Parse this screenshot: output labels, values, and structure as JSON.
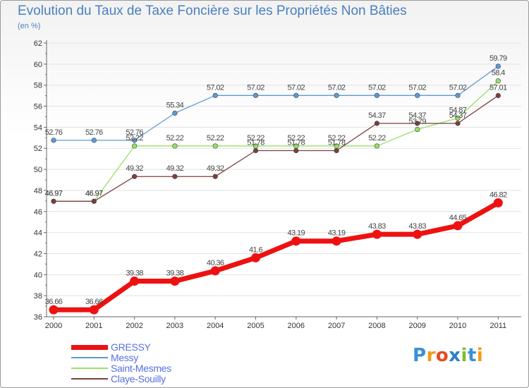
{
  "header": {
    "title": "Evolution du Taux de Taxe Foncière sur les Propriétés Non Bâties",
    "unit": "(en %)"
  },
  "logo": {
    "text": "Proxiti",
    "letters": [
      "P",
      "r",
      "o",
      "x",
      "i",
      "t",
      "i"
    ],
    "colors": [
      "#3a8fd6",
      "#f39a1e",
      "#e84a1f",
      "#2a7fc8",
      "#7bbf2a",
      "#3a8fd6",
      "#f39a1e"
    ]
  },
  "chart_data": {
    "type": "line",
    "title": "Evolution du Taux de Taxe Foncière sur les Propriétés Non Bâties",
    "ylabel": "(en %)",
    "xlabel": "",
    "x": [
      "2000",
      "2001",
      "2002",
      "2003",
      "2004",
      "2005",
      "2006",
      "2007",
      "2008",
      "2009",
      "2010",
      "2011"
    ],
    "ylim": [
      36,
      62
    ],
    "yticks": [
      "36",
      "38",
      "40",
      "42",
      "44",
      "46",
      "48",
      "50",
      "52",
      "54",
      "56",
      "58",
      "60",
      "62"
    ],
    "grid": "horizontal",
    "series": [
      {
        "name": "GRESSY",
        "color": "#ee1111",
        "values": [
          36.66,
          36.66,
          39.38,
          39.38,
          40.36,
          41.6,
          43.19,
          43.19,
          43.83,
          43.83,
          44.65,
          46.82
        ],
        "labels": [
          "36.66",
          "36.66",
          "39.38",
          "39.38",
          "40.36",
          "41.6",
          "43.19",
          "43.19",
          "43.83",
          "43.83",
          "44.65",
          "46.82"
        ]
      },
      {
        "name": "Messy",
        "color": "#5b9bd5",
        "values": [
          52.76,
          52.76,
          52.76,
          55.34,
          57.02,
          57.02,
          57.02,
          57.02,
          57.02,
          57.02,
          57.02,
          59.79
        ],
        "labels": [
          "52.76",
          "52.76",
          "52.76",
          "55.34",
          "57.02",
          "57.02",
          "57.02",
          "57.02",
          "57.02",
          "57.02",
          "57.02",
          "59.79"
        ]
      },
      {
        "name": "Saint-Mesmes",
        "color": "#99e066",
        "values": [
          46.97,
          46.97,
          52.22,
          52.22,
          52.22,
          52.22,
          52.22,
          52.22,
          52.22,
          53.79,
          54.87,
          58.4
        ],
        "labels": [
          "46.97",
          "46.97",
          "52.22",
          "52.22",
          "52.22",
          "52.22",
          "52.22",
          "52.22",
          "52.22",
          "53.79",
          "54.87",
          "58.4"
        ]
      },
      {
        "name": "Claye-Souilly",
        "color": "#7a3f3f",
        "values": [
          46.97,
          46.97,
          49.32,
          49.32,
          49.32,
          51.78,
          51.78,
          51.78,
          54.37,
          54.37,
          54.37,
          57.01
        ],
        "labels": [
          "46.97",
          "46.97",
          "49.32",
          "49.32",
          "49.32",
          "51.78",
          "51.78",
          "51.78",
          "54.37",
          "54.37",
          "54.37",
          "57.01"
        ]
      }
    ],
    "legend": "bottom-left"
  }
}
